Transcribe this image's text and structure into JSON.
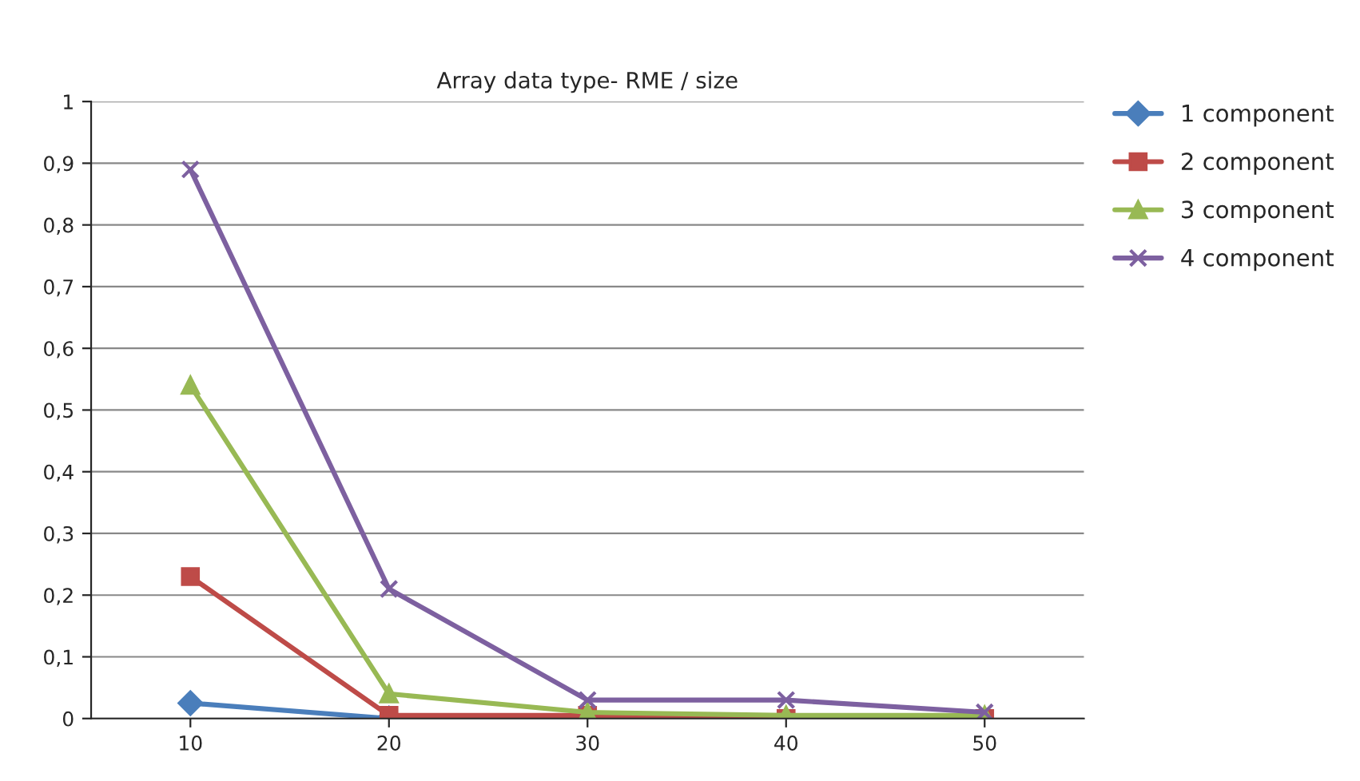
{
  "chart_data": {
    "type": "line",
    "title": "Array data type- RME / size",
    "categories": [
      "10",
      "20",
      "30",
      "40",
      "50"
    ],
    "series": [
      {
        "name": "1 component",
        "color": "#4a7ebb",
        "marker": "diamond",
        "values": [
          0.025,
          0.0,
          null,
          null,
          null
        ]
      },
      {
        "name": "2 component",
        "color": "#be4b48",
        "marker": "square",
        "values": [
          0.23,
          0.005,
          0.005,
          0.0,
          0.0
        ]
      },
      {
        "name": "3 component",
        "color": "#98b954",
        "marker": "triangle",
        "values": [
          0.54,
          0.04,
          0.01,
          0.005,
          0.005
        ]
      },
      {
        "name": "4 component",
        "color": "#7d60a0",
        "marker": "cross",
        "values": [
          0.89,
          0.21,
          0.03,
          0.03,
          0.01
        ]
      }
    ],
    "ylim": [
      0,
      1
    ],
    "yticks": [
      0,
      {
        "value": 0.1,
        "label": "0,1"
      },
      {
        "value": 0.2,
        "label": "0,2"
      },
      {
        "value": 0.3,
        "label": "0,3"
      },
      {
        "value": 0.4,
        "label": "0,4"
      },
      {
        "value": 0.5,
        "label": "0,5"
      },
      {
        "value": 0.6,
        "label": "0,6"
      },
      {
        "value": 0.7,
        "label": "0,7"
      },
      {
        "value": 0.8,
        "label": "0,8"
      },
      {
        "value": 0.9,
        "label": "0,9"
      },
      1
    ],
    "grid": "y",
    "legend": "top right",
    "line_style": "solid"
  }
}
